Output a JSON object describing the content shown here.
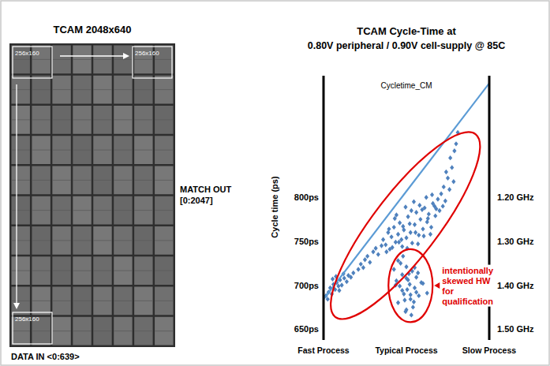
{
  "chart_data": {
    "type": "scatter",
    "title": "TCAM Cycle-Time at",
    "subtitle": "0.80V peripheral / 0.90V cell-supply @ 85C",
    "plot_label": "Cycletime_CM",
    "y_label": "Cycle time (ps)",
    "xlim": [
      0,
      2
    ],
    "xticks": [
      {
        "value": 0,
        "label": "Fast Process"
      },
      {
        "value": 1,
        "label": "Typical Process"
      },
      {
        "value": 2,
        "label": "Slow Process"
      }
    ],
    "ylim": [
      643,
      935
    ],
    "yticks": [
      {
        "value": 650,
        "label": "650ps"
      },
      {
        "value": 700,
        "label": "700ps"
      },
      {
        "value": 750,
        "label": "750ps"
      },
      {
        "value": 800,
        "label": "800ps"
      }
    ],
    "y2lim": [
      1.514,
      0.93
    ],
    "y2ticks": [
      {
        "value": 1.2,
        "label": "1.20 GHz"
      },
      {
        "value": 1.3,
        "label": "1.30 GHz"
      },
      {
        "value": 1.4,
        "label": "1.40 GHz"
      },
      {
        "value": 1.5,
        "label": "1.50 GHz"
      }
    ],
    "grid": false,
    "series": [
      {
        "type": "scatter",
        "color": "#4f81bd",
        "marker": "diamond",
        "x": [
          0.03,
          0.06,
          0.08,
          0.1,
          0.12,
          0.14,
          0.16,
          0.18,
          0.2,
          0.22,
          0.25,
          0.28,
          0.3,
          0.33,
          0.36,
          0.05,
          0.11,
          0.15,
          0.19,
          0.24,
          0.42,
          0.45,
          0.48,
          0.5,
          0.53,
          0.56,
          0.6,
          0.63,
          0.66,
          0.7,
          0.72,
          0.75,
          0.78,
          0.8,
          0.82,
          0.85,
          0.87,
          0.9,
          0.92,
          0.95,
          0.97,
          1.0,
          1.02,
          1.05,
          1.07,
          1.1,
          1.12,
          1.15,
          1.17,
          1.2,
          1.22,
          1.25,
          1.27,
          1.3,
          1.32,
          1.35,
          1.38,
          1.4,
          0.76,
          0.83,
          0.88,
          0.94,
          0.99,
          1.04,
          1.09,
          1.14,
          1.19,
          1.24,
          1.29,
          1.34,
          0.79,
          0.86,
          0.91,
          0.96,
          1.01,
          1.06,
          1.11,
          1.16,
          1.21,
          1.26,
          1.31,
          1.36,
          1.42,
          1.45,
          1.47,
          1.5,
          1.52,
          1.55,
          1.57,
          1.6,
          1.62,
          1.48,
          1.53,
          1.58,
          1.44
        ],
        "values": [
          688,
          692,
          697,
          690,
          701,
          695,
          703,
          699,
          706,
          700,
          708,
          704,
          711,
          709,
          714,
          684,
          707,
          710,
          694,
          713,
          718,
          724,
          720,
          729,
          733,
          726,
          738,
          742,
          735,
          745,
          752,
          746,
          760,
          741,
          755,
          766,
          749,
          758,
          771,
          744,
          763,
          754,
          778,
          760,
          748,
          769,
          783,
          757,
          775,
          764,
          788,
          772,
          781,
          766,
          793,
          779,
          798,
          785,
          738,
          743,
          780,
          752,
          789,
          770,
          795,
          747,
          786,
          800,
          758,
          790,
          764,
          776,
          749,
          767,
          742,
          785,
          760,
          791,
          756,
          776,
          803,
          787,
          804,
          812,
          796,
          822,
          809,
          834,
          818,
          861,
          874,
          829,
          845,
          853,
          790
        ]
      },
      {
        "type": "scatter",
        "color": "#4f81bd",
        "marker": "diamond",
        "x": [
          0.85,
          0.88,
          0.9,
          0.92,
          0.95,
          0.97,
          1.0,
          1.02,
          1.05,
          1.07,
          1.1,
          1.12,
          1.15,
          1.18,
          0.9,
          0.95,
          1.0,
          1.04,
          1.08,
          1.12,
          0.93,
          0.98,
          1.03,
          1.06,
          1.1,
          0.87,
          0.96,
          1.01,
          1.09,
          1.2,
          1.25,
          1.0,
          1.05,
          0.99,
          1.14
        ],
        "values": [
          718,
          705,
          728,
          699,
          712,
          690,
          721,
          706,
          684,
          716,
          697,
          709,
          688,
          703,
          680,
          694,
          672,
          701,
          675,
          692,
          725,
          683,
          713,
          666,
          720,
          700,
          733,
          695,
          681,
          702,
          691,
          708,
          689,
          670,
          714
        ]
      },
      {
        "type": "line",
        "color": "#5b9bd5",
        "line_style": "solid",
        "x": [
          0,
          2
        ],
        "values": [
          684,
          930
        ]
      }
    ],
    "annotations": [
      {
        "text": "intentionally skewed HW for qualification",
        "color": "#e00000"
      }
    ]
  },
  "die": {
    "title": "TCAM 2048x640",
    "block_label": "256x160",
    "match_out": [
      "MATCH OUT",
      "[0:2047]"
    ],
    "data_in": "DATA IN <0:639>"
  }
}
